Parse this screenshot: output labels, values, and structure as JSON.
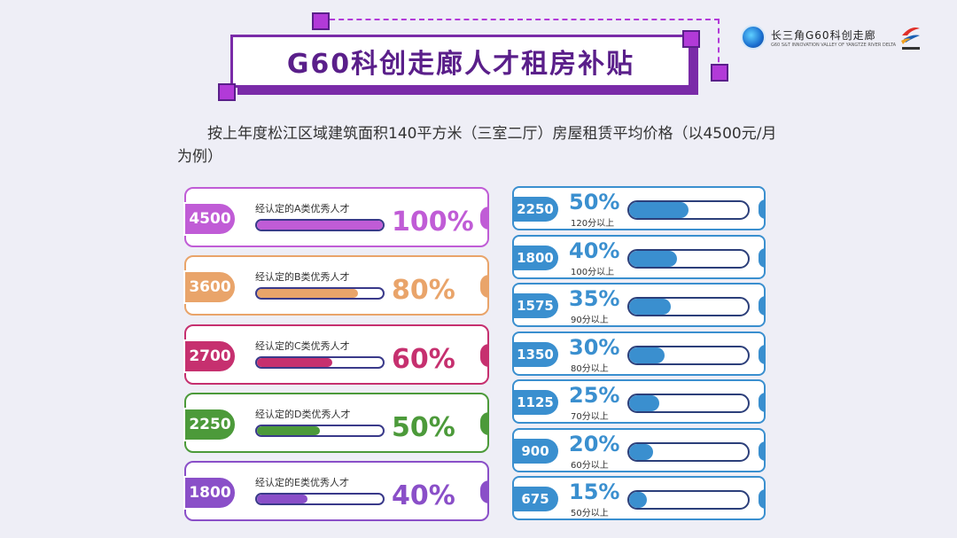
{
  "title": "G60科创走廊人才租房补贴",
  "logo": {
    "name": "长三角G60科创走廊",
    "subtitle": "G60 S&T INNOVATION VALLEY OF YANGTZE RIVER DELTA"
  },
  "intro": "按上年度松江区域建筑面积140平方米（三室二厅）房屋租赁平均价格（以4500元/月为例）",
  "left_cards": [
    {
      "amount": "4500",
      "label": "经认定的A类优秀人才",
      "percent": "100%",
      "fill": 1.0,
      "color": "#c05cd6"
    },
    {
      "amount": "3600",
      "label": "经认定的B类优秀人才",
      "percent": "80%",
      "fill": 0.8,
      "color": "#e9a46a"
    },
    {
      "amount": "2700",
      "label": "经认定的C类优秀人才",
      "percent": "60%",
      "fill": 0.6,
      "color": "#c6306f"
    },
    {
      "amount": "2250",
      "label": "经认定的D类优秀人才",
      "percent": "50%",
      "fill": 0.5,
      "color": "#4c9a3a"
    },
    {
      "amount": "1800",
      "label": "经认定的E类优秀人才",
      "percent": "40%",
      "fill": 0.4,
      "color": "#8a4fc8"
    }
  ],
  "right_cards": [
    {
      "amount": "2250",
      "percent": "50%",
      "score": "120分以上",
      "fill": 0.5
    },
    {
      "amount": "1800",
      "percent": "40%",
      "score": "100分以上",
      "fill": 0.4
    },
    {
      "amount": "1575",
      "percent": "35%",
      "score": "90分以上",
      "fill": 0.35
    },
    {
      "amount": "1350",
      "percent": "30%",
      "score": "80分以上",
      "fill": 0.3
    },
    {
      "amount": "1125",
      "percent": "25%",
      "score": "70分以上",
      "fill": 0.25
    },
    {
      "amount": "900",
      "percent": "20%",
      "score": "60分以上",
      "fill": 0.2
    },
    {
      "amount": "675",
      "percent": "15%",
      "score": "50分以上",
      "fill": 0.15
    }
  ]
}
